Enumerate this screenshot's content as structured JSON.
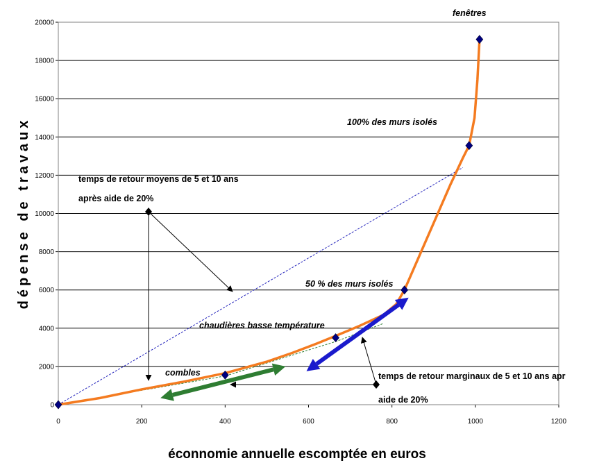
{
  "chart_data": {
    "type": "line",
    "xlabel": "éconnomie annuelle escomptée en euros",
    "ylabel": "dépense de travaux",
    "xlim": [
      0,
      1200
    ],
    "ylim": [
      0,
      20000
    ],
    "x_ticks": [
      "0",
      "200",
      "400",
      "600",
      "800",
      "1000",
      "1200"
    ],
    "y_ticks": [
      "0",
      "2000",
      "4000",
      "6000",
      "8000",
      "10000",
      "12000",
      "14000",
      "16000",
      "18000",
      "20000"
    ],
    "grid": "horizontal",
    "series": [
      {
        "color": "#f47b20",
        "x": [
          0,
          100,
          200,
          300,
          400,
          500,
          560,
          620,
          665,
          720,
          780,
          810,
          830,
          860,
          900,
          940,
          970,
          985,
          998,
          1005,
          1010
        ],
        "y": [
          0,
          350,
          800,
          1200,
          1650,
          2250,
          2700,
          3200,
          3600,
          4100,
          4700,
          5250,
          6000,
          7500,
          9500,
          11500,
          12900,
          13550,
          15000,
          17000,
          19100
        ]
      }
    ],
    "points": [
      {
        "x": 0,
        "y": 0,
        "color": "#000080"
      },
      {
        "x": 400,
        "y": 1550,
        "color": "#000080"
      },
      {
        "x": 665,
        "y": 3500,
        "color": "#000080"
      },
      {
        "x": 830,
        "y": 6000,
        "color": "#000080"
      },
      {
        "x": 985,
        "y": 13550,
        "color": "#000080"
      },
      {
        "x": 1010,
        "y": 19100,
        "color": "#000080"
      }
    ],
    "reference_lines": [
      {
        "style": "dashed",
        "color": "#2222bb",
        "x": [
          0,
          970
        ],
        "y": [
          0,
          12400
        ]
      },
      {
        "style": "dashed",
        "color": "#2e7d32",
        "x": [
          0,
          400,
          665,
          780
        ],
        "y": [
          0,
          1500,
          3300,
          4250
        ]
      }
    ],
    "arrows": [
      {
        "color": "#2e7d32",
        "x": [
          245,
          545
        ],
        "y": [
          350,
          2000
        ]
      },
      {
        "color": "#1a1acc",
        "x": [
          595,
          840
        ],
        "y": [
          1750,
          5600
        ]
      }
    ],
    "annotations": {
      "fenetres": "fenêtres",
      "murs100": "100% des murs isolés",
      "murs50": "50 % des murs isolés",
      "chaudieres": "chaudières basse température",
      "combles": "combles",
      "retour_moyen_1": "temps de retour moyens de 5 et 10 ans",
      "retour_moyen_2": "après aide de 20%",
      "retour_marg_1": "temps de retour marginaux de 5 et 10 ans apr",
      "retour_marg_2": "aide de 20%"
    }
  }
}
